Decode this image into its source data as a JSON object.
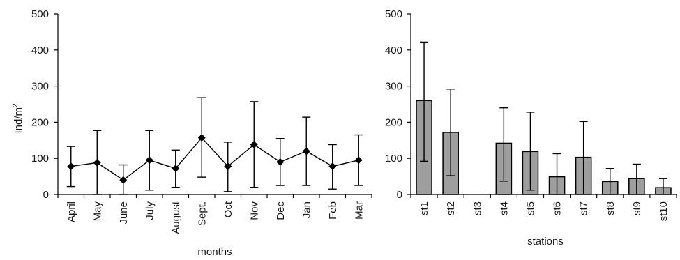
{
  "chart_data": [
    {
      "type": "line",
      "xlabel": "months",
      "ylabel": "Ind/m",
      "ylabel_superscript": "2",
      "ylim": [
        0,
        500
      ],
      "yticks": [
        "0",
        "100",
        "200",
        "300",
        "400",
        "500"
      ],
      "categories": [
        "April",
        "May",
        "June",
        "July",
        "August",
        "Sept.",
        "Oct",
        "Nov",
        "Dec",
        "Jan",
        "Feb",
        "Mar"
      ],
      "values": [
        78,
        88,
        40,
        95,
        72,
        157,
        78,
        138,
        90,
        120,
        78,
        95
      ],
      "error_low": [
        22,
        0,
        0,
        12,
        20,
        48,
        8,
        20,
        25,
        25,
        15,
        25
      ],
      "error_high": [
        133,
        177,
        82,
        177,
        123,
        268,
        145,
        257,
        155,
        214,
        138,
        165
      ],
      "marker": "diamond",
      "grid": false
    },
    {
      "type": "bar",
      "xlabel": "stations",
      "ylabel": "",
      "ylim": [
        0,
        500
      ],
      "yticks": [
        "0",
        "100",
        "200",
        "300",
        "400",
        "500"
      ],
      "categories": [
        "st1",
        "st2",
        "st3",
        "st4",
        "st5",
        "st6",
        "st7",
        "st8",
        "st9",
        "st10"
      ],
      "values": [
        260,
        172,
        0,
        142,
        119,
        49,
        103,
        36,
        44,
        19
      ],
      "error_low": [
        92,
        52,
        0,
        37,
        12,
        0,
        0,
        0,
        0,
        0
      ],
      "error_high": [
        422,
        292,
        0,
        240,
        228,
        113,
        202,
        72,
        84,
        44
      ],
      "colors": {
        "bar_fill": "#9e9e9e",
        "bar_stroke": "#000000"
      },
      "grid": false
    }
  ]
}
